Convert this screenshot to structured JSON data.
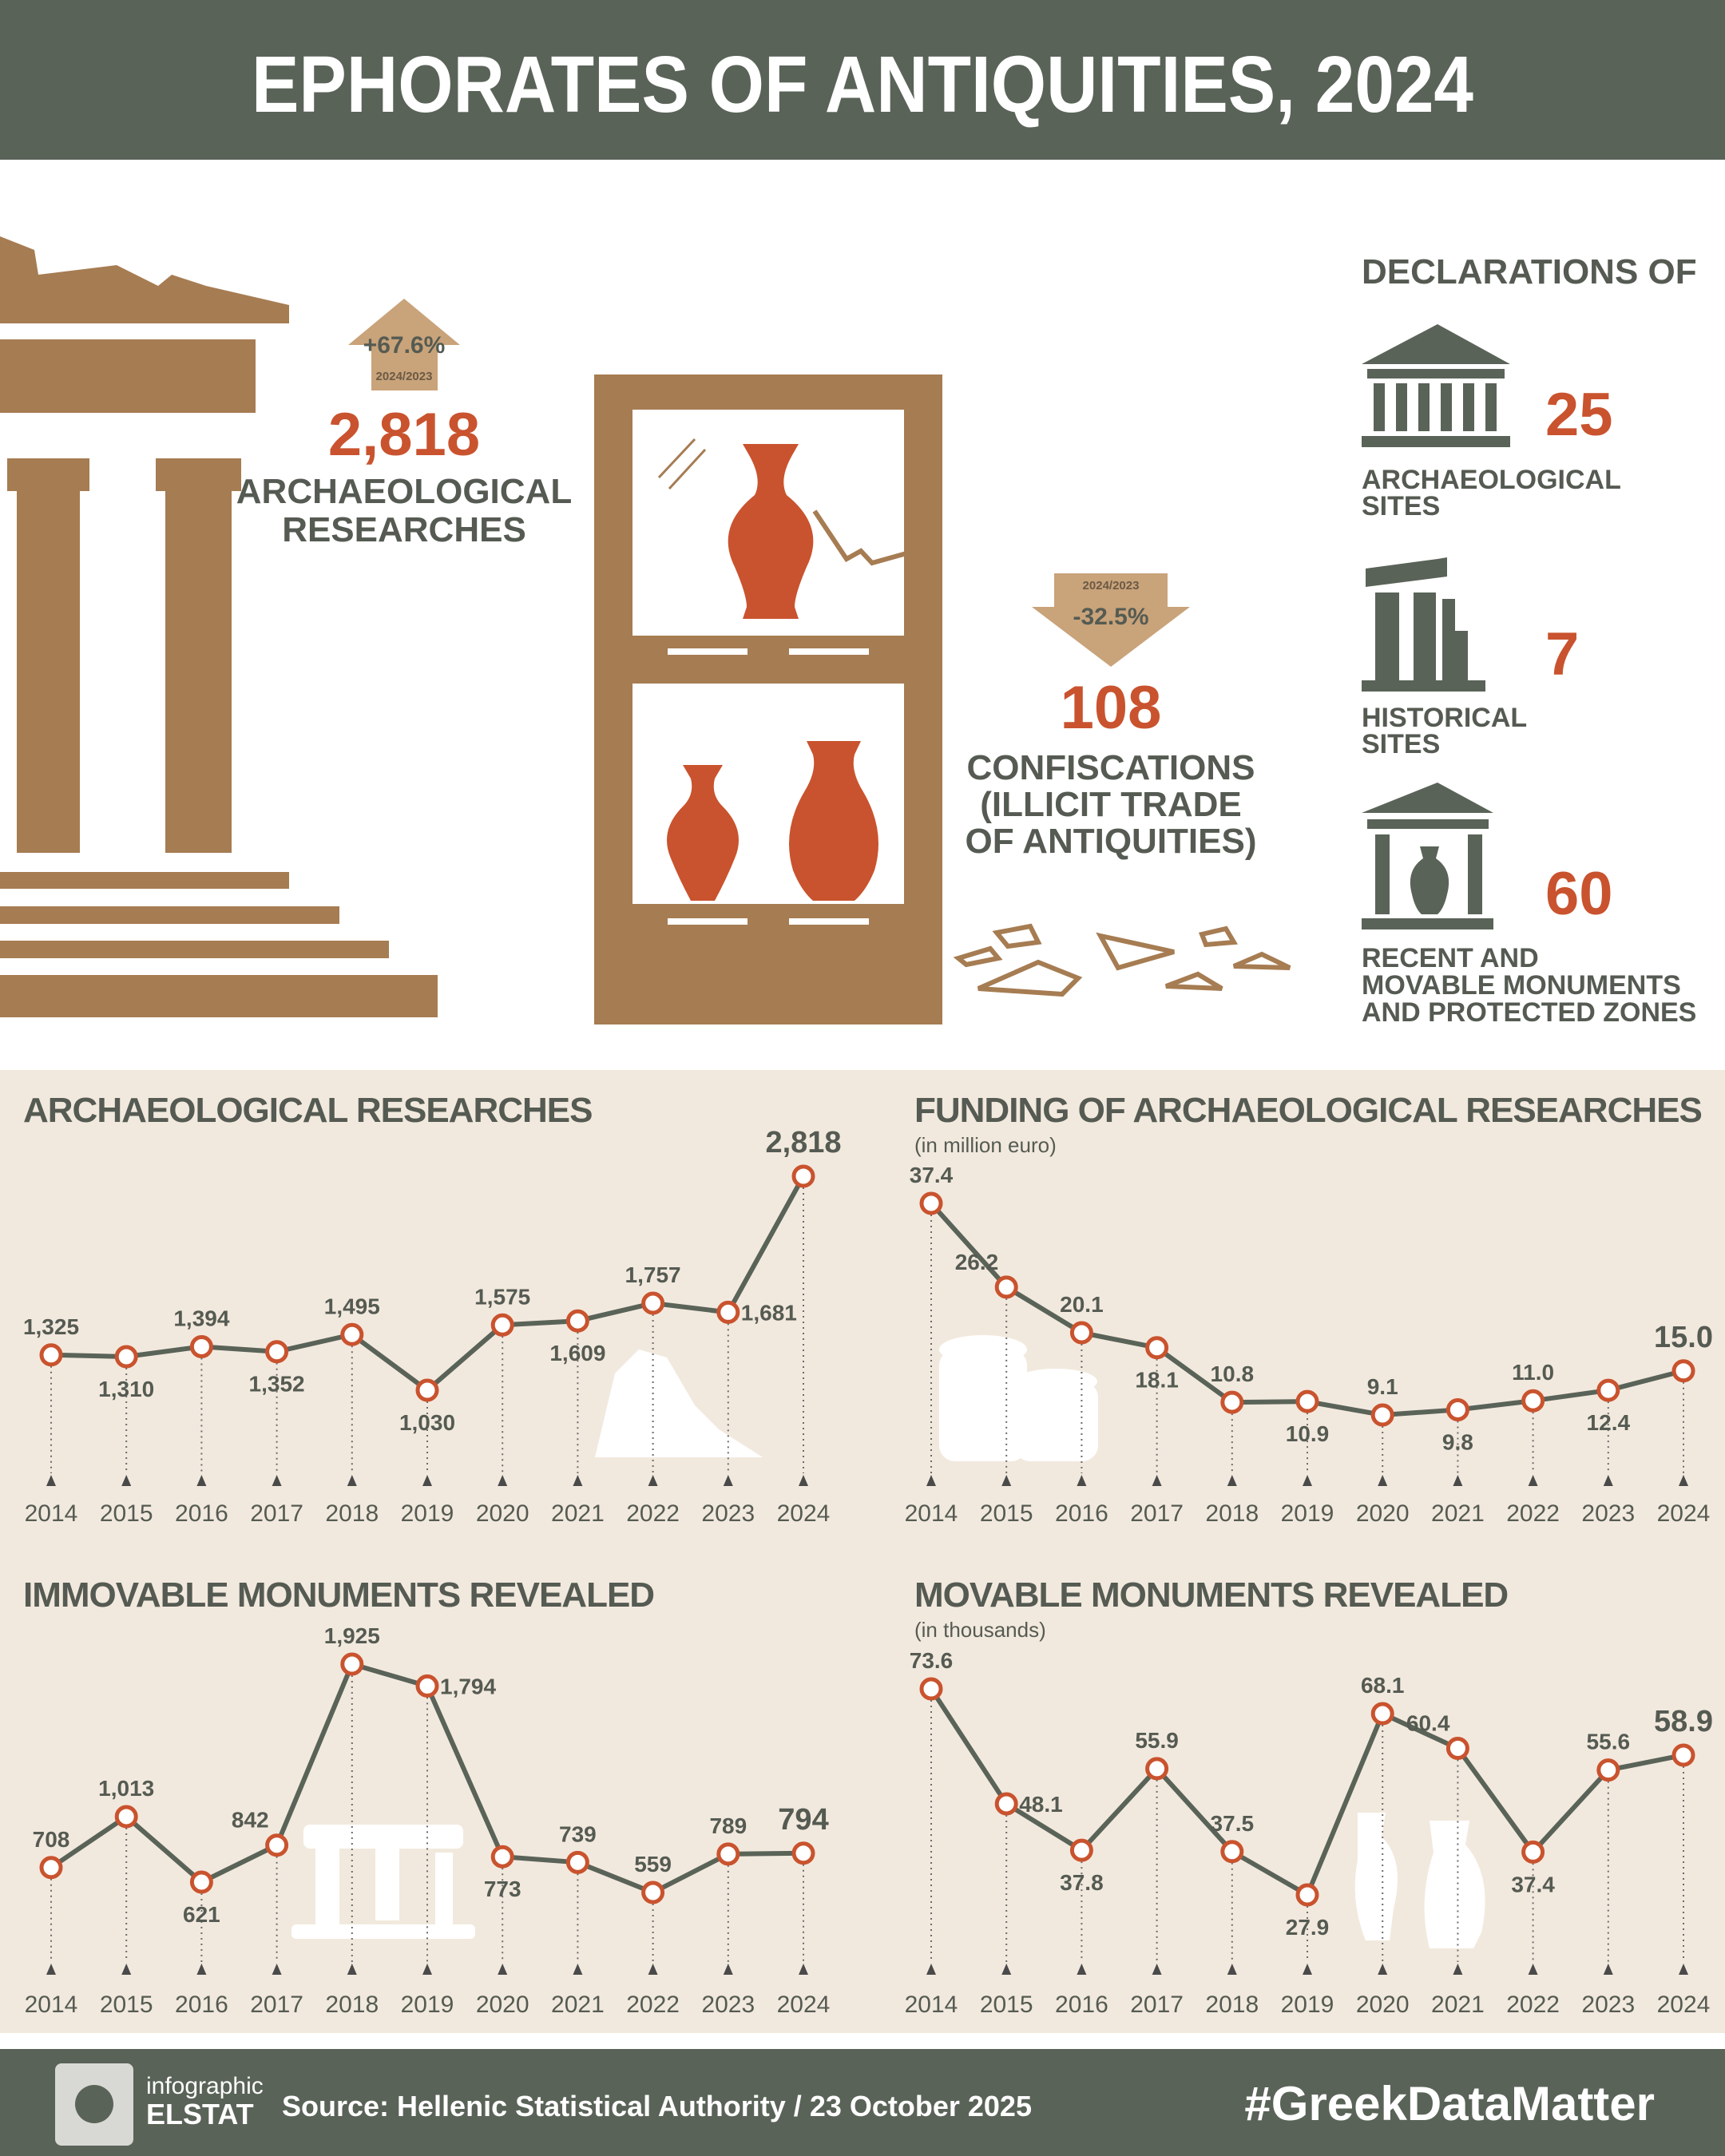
{
  "title": "EPHORATES OF ANTIQUITIES, 2024",
  "highlights": [
    {
      "change": "+67.6%",
      "period": "2024/2023",
      "value": "2,818",
      "label_lines": [
        "ARCHAEOLOGICAL",
        "RESEARCHES"
      ]
    },
    {
      "change": "-32.5%",
      "period": "2024/2023",
      "value": "108",
      "label_lines": [
        "CONFISCATIONS",
        "(ILLICIT TRADE",
        "OF ANTIQUITIES)"
      ]
    }
  ],
  "declarations": {
    "heading": "DECLARATIONS OF",
    "items": [
      {
        "value": "25",
        "label_lines": [
          "ARCHAEOLOGICAL",
          "SITES"
        ]
      },
      {
        "value": "7",
        "label_lines": [
          "HISTORICAL",
          "SITES"
        ]
      },
      {
        "value": "60",
        "label_lines": [
          "RECENT AND",
          "MOVABLE MONUMENTS",
          "AND PROTECTED ZONES"
        ]
      }
    ]
  },
  "chart_data": [
    {
      "type": "line",
      "title": "ARCHAEOLOGICAL RESEARCHES",
      "color": "#5a6358",
      "marker_color": "#c9532e",
      "categories": [
        "2014",
        "2015",
        "2016",
        "2017",
        "2018",
        "2019",
        "2020",
        "2021",
        "2022",
        "2023",
        "2024"
      ],
      "values": [
        1325,
        1310,
        1394,
        1352,
        1495,
        1030,
        1575,
        1609,
        1757,
        1681,
        2818
      ],
      "value_labels": [
        "1,325",
        "1,310",
        "1,394",
        "1,352",
        "1,495",
        "1,030",
        "1,575",
        "1,609",
        "1,757",
        "1,681",
        "2,818"
      ]
    },
    {
      "type": "line",
      "title": "FUNDING OF ARCHAEOLOGICAL RESEARCHES",
      "subtitle": "(in million euro)",
      "color": "#5a6358",
      "marker_color": "#c9532e",
      "categories": [
        "2014",
        "2015",
        "2016",
        "2017",
        "2018",
        "2019",
        "2020",
        "2021",
        "2022",
        "2023",
        "2024"
      ],
      "values": [
        37.4,
        26.2,
        20.1,
        18.1,
        10.8,
        10.9,
        9.1,
        9.8,
        11.0,
        12.4,
        15.0
      ],
      "value_labels": [
        "37.4",
        "26.2",
        "20.1",
        "18.1",
        "10.8",
        "10.9",
        "9.1",
        "9.8",
        "11.0",
        "12.4",
        "15.0"
      ]
    },
    {
      "type": "line",
      "title": "IMMOVABLE MONUMENTS REVEALED",
      "color": "#5a6358",
      "marker_color": "#c9532e",
      "categories": [
        "2014",
        "2015",
        "2016",
        "2017",
        "2018",
        "2019",
        "2020",
        "2021",
        "2022",
        "2023",
        "2024"
      ],
      "values": [
        708,
        1013,
        621,
        842,
        1925,
        1794,
        773,
        739,
        559,
        789,
        794
      ],
      "value_labels": [
        "708",
        "1,013",
        "621",
        "842",
        "1,925",
        "1,794",
        "773",
        "739",
        "559",
        "789",
        "794"
      ]
    },
    {
      "type": "line",
      "title": "MOVABLE MONUMENTS REVEALED",
      "subtitle": "(in thousands)",
      "color": "#5a6358",
      "marker_color": "#c9532e",
      "categories": [
        "2014",
        "2015",
        "2016",
        "2017",
        "2018",
        "2019",
        "2020",
        "2021",
        "2022",
        "2023",
        "2024"
      ],
      "values": [
        73.6,
        48.1,
        37.8,
        55.9,
        37.5,
        27.9,
        68.1,
        60.4,
        37.4,
        55.6,
        58.9
      ],
      "value_labels": [
        "73.6",
        "48.1",
        "37.8",
        "55.9",
        "37.5",
        "27.9",
        "68.1",
        "60.4",
        "37.4",
        "55.6",
        "58.9"
      ]
    }
  ],
  "footer": {
    "brand_top": "infographic",
    "brand": "ELSTAT",
    "source": "Source: Hellenic Statistical Authority / 23 October 2025",
    "hashtag": "#GreekDataMatter"
  }
}
